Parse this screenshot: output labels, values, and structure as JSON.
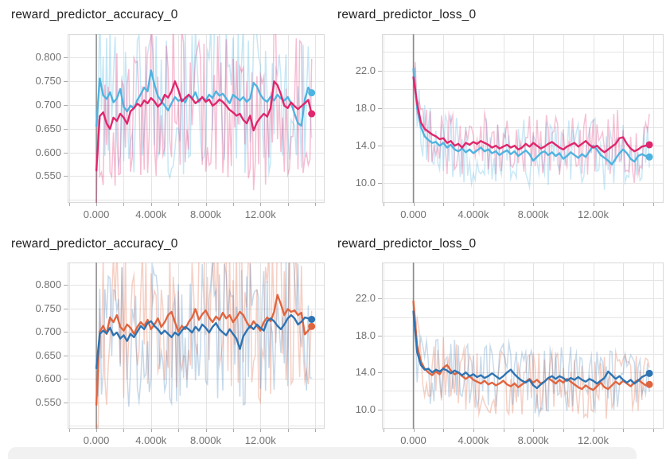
{
  "style": {
    "background": "#ffffff",
    "grid_color": "#e4e4e4",
    "border_color": "#d9d9d9",
    "zero_line_color": "#8b8b8b",
    "tick_mark_color": "#ababab",
    "tick_label_color": "#737373",
    "title_color": "#212121",
    "partial_card_color": "#f1f1f2"
  },
  "chart_data": [
    {
      "type": "line",
      "title": "reward_predictor_accuracy_0",
      "xlabel": "",
      "ylabel": "",
      "x_start": 0,
      "x_step": 250,
      "xlim": [
        -2100,
        16700
      ],
      "ylim": [
        0.494,
        0.848
      ],
      "x_grid_step": 2000,
      "y_grid_step": 0.05,
      "grid": true,
      "zero_line_x": 0,
      "legend": "none",
      "x_ticks": [
        {
          "v": 0,
          "label": "0.000"
        },
        {
          "v": 4000,
          "label": "4.000k"
        },
        {
          "v": 8000,
          "label": "8.000k"
        },
        {
          "v": 12000,
          "label": "12.00k"
        }
      ],
      "y_ticks": [
        {
          "v": 0.8,
          "label": "0.800"
        },
        {
          "v": 0.75,
          "label": "0.750"
        },
        {
          "v": 0.7,
          "label": "0.700"
        },
        {
          "v": 0.65,
          "label": "0.650"
        },
        {
          "v": 0.6,
          "label": "0.600"
        },
        {
          "v": 0.55,
          "label": "0.550"
        }
      ],
      "series": [
        {
          "name": "light-blue-run",
          "color": "#4fb3e0",
          "end_dot": true,
          "raw": {
            "amplitude": 0.155,
            "opacity": 0.32,
            "seed": 101,
            "x_step": 125
          },
          "smoothed": [
            0.655,
            0.755,
            0.72,
            0.712,
            0.726,
            0.705,
            0.713,
            0.733,
            0.696,
            0.686,
            0.698,
            0.692,
            0.71,
            0.722,
            0.736,
            0.728,
            0.772,
            0.742,
            0.718,
            0.708,
            0.698,
            0.688,
            0.703,
            0.716,
            0.708,
            0.712,
            0.705,
            0.721,
            0.713,
            0.726,
            0.706,
            0.716,
            0.709,
            0.721,
            0.714,
            0.728,
            0.719,
            0.723,
            0.713,
            0.703,
            0.721,
            0.715,
            0.709,
            0.716,
            0.706,
            0.713,
            0.746,
            0.738,
            0.721,
            0.711,
            0.706,
            0.717,
            0.709,
            0.721,
            0.713,
            0.709,
            0.716,
            0.703,
            0.681,
            0.661,
            0.656,
            0.711,
            0.736,
            0.725
          ]
        },
        {
          "name": "pink-run",
          "color": "#e0266c",
          "end_dot": true,
          "raw": {
            "amplitude": 0.155,
            "opacity": 0.3,
            "seed": 202,
            "x_step": 125
          },
          "smoothed": [
            0.562,
            0.676,
            0.684,
            0.661,
            0.649,
            0.673,
            0.666,
            0.681,
            0.673,
            0.66,
            0.686,
            0.693,
            0.702,
            0.697,
            0.709,
            0.703,
            0.714,
            0.707,
            0.696,
            0.703,
            0.721,
            0.715,
            0.728,
            0.749,
            0.731,
            0.707,
            0.714,
            0.721,
            0.713,
            0.703,
            0.709,
            0.716,
            0.706,
            0.711,
            0.698,
            0.703,
            0.711,
            0.706,
            0.698,
            0.689,
            0.684,
            0.677,
            0.681,
            0.668,
            0.661,
            0.677,
            0.646,
            0.663,
            0.673,
            0.681,
            0.675,
            0.693,
            0.749,
            0.741,
            0.722,
            0.698,
            0.693,
            0.705,
            0.697,
            0.691,
            0.697,
            0.703,
            0.71,
            0.681
          ]
        }
      ]
    },
    {
      "type": "line",
      "title": "reward_predictor_loss_0",
      "xlabel": "",
      "ylabel": "",
      "x_start": 0,
      "x_step": 250,
      "xlim": [
        -2100,
        16700
      ],
      "ylim": [
        7.9,
        25.9
      ],
      "x_grid_step": 2000,
      "y_grid_step": 2,
      "grid": true,
      "zero_line_x": 0,
      "legend": "none",
      "x_ticks": [
        {
          "v": 0,
          "label": "0.000"
        },
        {
          "v": 4000,
          "label": "4.000k"
        },
        {
          "v": 8000,
          "label": "8.000k"
        },
        {
          "v": 12000,
          "label": "12.00k"
        }
      ],
      "y_ticks": [
        {
          "v": 22.0,
          "label": "22.0"
        },
        {
          "v": 18.0,
          "label": "18.0"
        },
        {
          "v": 14.0,
          "label": "14.0"
        },
        {
          "v": 10.0,
          "label": "10.0"
        }
      ],
      "series": [
        {
          "name": "light-blue-run",
          "color": "#4fb3e0",
          "end_dot": true,
          "raw": {
            "amplitude": 3.6,
            "opacity": 0.3,
            "seed": 303,
            "x_step": 125
          },
          "smoothed": [
            22.2,
            18.0,
            16.0,
            15.0,
            14.6,
            14.3,
            14.4,
            14.0,
            14.3,
            13.8,
            14.1,
            13.6,
            13.4,
            13.7,
            13.3,
            13.6,
            13.2,
            13.5,
            13.8,
            13.4,
            13.6,
            13.2,
            13.4,
            13.0,
            13.3,
            13.5,
            13.1,
            13.4,
            12.9,
            13.2,
            13.5,
            13.1,
            12.4,
            12.8,
            13.2,
            13.4,
            13.0,
            13.3,
            12.9,
            13.2,
            12.6,
            12.9,
            13.3,
            13.0,
            12.7,
            13.1,
            12.8,
            13.4,
            14.0,
            13.6,
            13.0,
            12.7,
            12.4,
            12.0,
            12.6,
            13.2,
            13.6,
            13.2,
            12.6,
            12.3,
            12.9,
            13.1,
            12.9,
            12.8
          ]
        },
        {
          "name": "pink-run",
          "color": "#e0266c",
          "end_dot": true,
          "raw": {
            "amplitude": 3.4,
            "opacity": 0.28,
            "seed": 404,
            "x_step": 125
          },
          "smoothed": [
            21.3,
            18.5,
            16.5,
            15.8,
            15.5,
            15.2,
            15.0,
            14.7,
            14.8,
            14.3,
            14.5,
            14.0,
            14.2,
            13.8,
            14.3,
            14.1,
            14.4,
            14.2,
            14.5,
            14.3,
            14.1,
            13.8,
            14.0,
            13.7,
            13.9,
            14.1,
            13.8,
            14.0,
            13.6,
            13.8,
            14.2,
            13.9,
            14.3,
            14.0,
            13.7,
            13.9,
            14.2,
            14.4,
            14.1,
            13.8,
            13.6,
            13.9,
            14.1,
            14.3,
            13.9,
            14.2,
            14.5,
            14.1,
            13.8,
            14.0,
            13.6,
            13.3,
            13.6,
            13.9,
            14.2,
            14.8,
            14.9,
            14.2,
            13.7,
            13.4,
            13.6,
            13.9,
            14.0,
            14.1
          ]
        }
      ]
    },
    {
      "type": "line",
      "title": "reward_predictor_accuracy_0",
      "xlabel": "",
      "ylabel": "",
      "x_start": 0,
      "x_step": 250,
      "xlim": [
        -2100,
        16700
      ],
      "ylim": [
        0.494,
        0.848
      ],
      "x_grid_step": 2000,
      "y_grid_step": 0.05,
      "grid": true,
      "zero_line_x": 0,
      "legend": "none",
      "x_ticks": [
        {
          "v": 0,
          "label": "0.000"
        },
        {
          "v": 4000,
          "label": "4.000k"
        },
        {
          "v": 8000,
          "label": "8.000k"
        },
        {
          "v": 12000,
          "label": "12.00k"
        }
      ],
      "y_ticks": [
        {
          "v": 0.8,
          "label": "0.800"
        },
        {
          "v": 0.75,
          "label": "0.750"
        },
        {
          "v": 0.7,
          "label": "0.700"
        },
        {
          "v": 0.65,
          "label": "0.650"
        },
        {
          "v": 0.6,
          "label": "0.600"
        },
        {
          "v": 0.55,
          "label": "0.550"
        }
      ],
      "series": [
        {
          "name": "orange-run",
          "color": "#e0653f",
          "end_dot": true,
          "raw": {
            "amplitude": 0.155,
            "opacity": 0.3,
            "seed": 505,
            "x_step": 125
          },
          "smoothed": [
            0.545,
            0.701,
            0.713,
            0.696,
            0.731,
            0.721,
            0.736,
            0.711,
            0.703,
            0.716,
            0.709,
            0.696,
            0.711,
            0.721,
            0.713,
            0.726,
            0.706,
            0.716,
            0.729,
            0.711,
            0.721,
            0.736,
            0.743,
            0.721,
            0.701,
            0.713,
            0.706,
            0.721,
            0.731,
            0.749,
            0.726,
            0.738,
            0.746,
            0.731,
            0.721,
            0.733,
            0.726,
            0.741,
            0.729,
            0.736,
            0.721,
            0.731,
            0.743,
            0.736,
            0.721,
            0.709,
            0.723,
            0.713,
            0.703,
            0.721,
            0.731,
            0.723,
            0.743,
            0.779,
            0.759,
            0.736,
            0.749,
            0.743,
            0.746,
            0.736,
            0.741,
            0.695,
            0.703,
            0.712
          ]
        },
        {
          "name": "dark-blue-run",
          "color": "#2e73b2",
          "end_dot": true,
          "raw": {
            "amplitude": 0.155,
            "opacity": 0.28,
            "seed": 606,
            "x_step": 125
          },
          "smoothed": [
            0.623,
            0.696,
            0.703,
            0.697,
            0.709,
            0.693,
            0.699,
            0.686,
            0.693,
            0.681,
            0.696,
            0.689,
            0.701,
            0.713,
            0.706,
            0.719,
            0.723,
            0.713,
            0.706,
            0.696,
            0.703,
            0.696,
            0.689,
            0.699,
            0.693,
            0.703,
            0.711,
            0.706,
            0.699,
            0.711,
            0.703,
            0.716,
            0.709,
            0.699,
            0.711,
            0.719,
            0.706,
            0.699,
            0.693,
            0.706,
            0.696,
            0.686,
            0.664,
            0.691,
            0.703,
            0.713,
            0.706,
            0.716,
            0.709,
            0.703,
            0.723,
            0.729,
            0.723,
            0.713,
            0.706,
            0.716,
            0.729,
            0.736,
            0.729,
            0.716,
            0.722,
            0.731,
            0.729,
            0.727
          ]
        }
      ]
    },
    {
      "type": "line",
      "title": "reward_predictor_loss_0",
      "xlabel": "",
      "ylabel": "",
      "x_start": 0,
      "x_step": 250,
      "xlim": [
        -2100,
        16700
      ],
      "ylim": [
        7.9,
        25.9
      ],
      "x_grid_step": 2000,
      "y_grid_step": 2,
      "grid": true,
      "zero_line_x": 0,
      "legend": "none",
      "x_ticks": [
        {
          "v": 0,
          "label": "0.000"
        },
        {
          "v": 4000,
          "label": "4.000k"
        },
        {
          "v": 8000,
          "label": "8.000k"
        },
        {
          "v": 12000,
          "label": "12.00k"
        }
      ],
      "y_ticks": [
        {
          "v": 22.0,
          "label": "22.0"
        },
        {
          "v": 18.0,
          "label": "18.0"
        },
        {
          "v": 14.0,
          "label": "14.0"
        },
        {
          "v": 10.0,
          "label": "10.0"
        }
      ],
      "series": [
        {
          "name": "orange-run",
          "color": "#e0653f",
          "end_dot": true,
          "raw": {
            "amplitude": 3.4,
            "opacity": 0.3,
            "seed": 707,
            "x_step": 125
          },
          "smoothed": [
            21.7,
            16.9,
            15.2,
            14.4,
            14.0,
            13.7,
            14.1,
            13.8,
            14.5,
            14.8,
            14.2,
            13.8,
            14.0,
            13.6,
            13.3,
            13.6,
            13.2,
            13.0,
            12.8,
            13.1,
            12.7,
            12.9,
            12.6,
            12.8,
            13.1,
            12.7,
            12.5,
            12.8,
            12.4,
            12.7,
            13.0,
            13.3,
            12.9,
            13.2,
            12.8,
            13.0,
            13.4,
            13.1,
            12.8,
            13.2,
            12.9,
            13.3,
            13.0,
            12.7,
            12.4,
            12.2,
            12.6,
            12.3,
            12.1,
            12.5,
            12.9,
            12.4,
            12.2,
            12.6,
            13.0,
            12.7,
            13.1,
            12.8,
            12.5,
            12.9,
            13.2,
            12.9,
            12.6,
            12.7
          ]
        },
        {
          "name": "dark-blue-run",
          "color": "#2e73b2",
          "end_dot": true,
          "raw": {
            "amplitude": 3.6,
            "opacity": 0.26,
            "seed": 808,
            "x_step": 125
          },
          "smoothed": [
            20.6,
            16.2,
            14.8,
            14.3,
            14.4,
            14.0,
            14.3,
            14.1,
            14.4,
            14.2,
            13.9,
            14.2,
            14.0,
            13.7,
            14.0,
            13.6,
            13.8,
            13.5,
            13.7,
            13.4,
            13.6,
            13.9,
            13.6,
            13.3,
            13.6,
            14.0,
            14.3,
            13.8,
            13.4,
            13.1,
            12.9,
            13.2,
            12.6,
            12.3,
            12.7,
            13.0,
            13.4,
            13.6,
            13.3,
            13.6,
            13.4,
            13.1,
            13.4,
            13.2,
            13.5,
            13.2,
            13.0,
            13.3,
            13.1,
            12.8,
            13.1,
            13.4,
            14.1,
            13.7,
            13.3,
            13.6,
            13.2,
            12.9,
            13.2,
            12.8,
            13.1,
            13.5,
            13.7,
            13.9
          ]
        }
      ]
    }
  ]
}
